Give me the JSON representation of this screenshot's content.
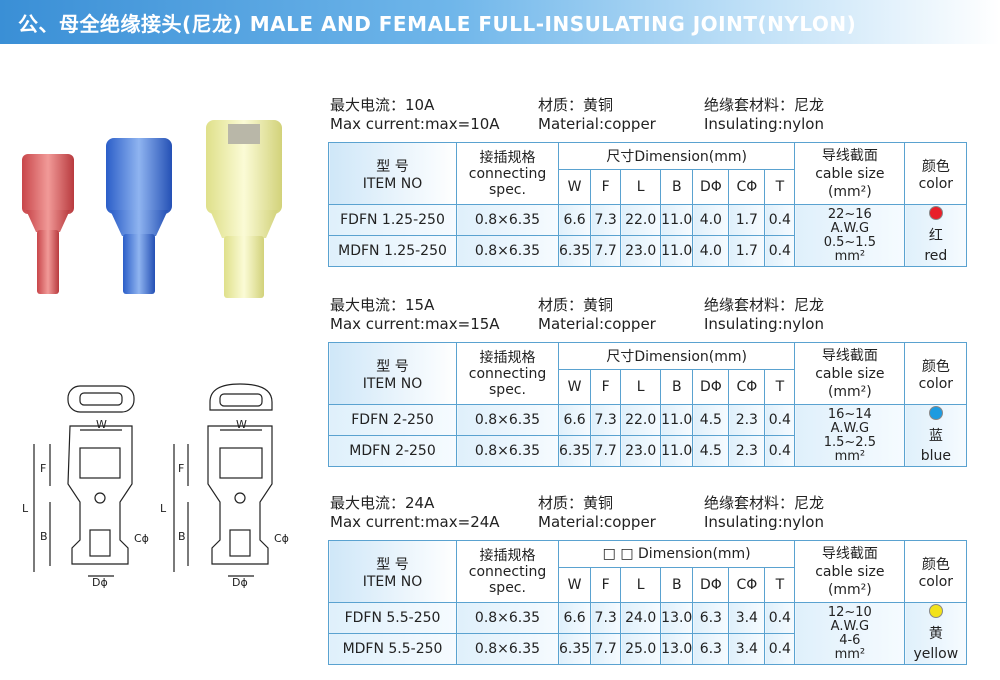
{
  "banner": {
    "title": "公、母全绝缘接头(尼龙) MALE AND FEMALE FULL-INSULATING JOINT(NYLON)"
  },
  "headers": {
    "item_cn": "型 号",
    "item_en": "ITEM NO",
    "conn_cn": "接插规格",
    "conn_en1": "connecting",
    "conn_en2": "spec.",
    "dim": "尺寸Dimension(mm)",
    "dim3": "□ □ Dimension(mm)",
    "cols": [
      "W",
      "F",
      "L",
      "B",
      "DΦ",
      "CΦ",
      "T"
    ],
    "cable_cn": "导线截面",
    "cable_en": "cable size",
    "cable_unit": "(mm²)",
    "color_cn": "颜色",
    "color_en": "color"
  },
  "diagram_labels": {
    "w": "W",
    "f": "F",
    "l": "L",
    "b": "B",
    "c": "Cϕ",
    "d": "Dϕ"
  },
  "sections": [
    {
      "current_cn": "最大电流：10A",
      "current_en": "Max current:max=10A",
      "material_cn": "材质：黄铜",
      "material_en": "Material:copper",
      "insul_cn": "绝缘套材料：尼龙",
      "insul_en": "Insulating:nylon",
      "rows": [
        {
          "item": "FDFN  1.25-250",
          "conn": "0.8×6.35",
          "vals": [
            "6.6",
            "7.3",
            "22.0",
            "11.0",
            "4.0",
            "1.7",
            "0.4"
          ]
        },
        {
          "item": "MDFN  1.25-250",
          "conn": "0.8×6.35",
          "vals": [
            "6.35",
            "7.7",
            "23.0",
            "11.0",
            "4.0",
            "1.7",
            "0.4"
          ]
        }
      ],
      "awg": "22~16",
      "awg_unit": "A.W.G",
      "mm": "0.5~1.5",
      "mm_unit": "mm²",
      "color_hex": "#e8202a",
      "color_cn": "红",
      "color_en": "red"
    },
    {
      "current_cn": "最大电流：15A",
      "current_en": "Max current:max=15A",
      "material_cn": "材质：黄铜",
      "material_en": "Material:copper",
      "insul_cn": "绝缘套材料：尼龙",
      "insul_en": "Insulating:nylon",
      "rows": [
        {
          "item": "FDFN  2-250",
          "conn": "0.8×6.35",
          "vals": [
            "6.6",
            "7.3",
            "22.0",
            "11.0",
            "4.5",
            "2.3",
            "0.4"
          ]
        },
        {
          "item": "MDFN  2-250",
          "conn": "0.8×6.35",
          "vals": [
            "6.35",
            "7.7",
            "23.0",
            "11.0",
            "4.5",
            "2.3",
            "0.4"
          ]
        }
      ],
      "awg": "16~14",
      "awg_unit": "A.W.G",
      "mm": "1.5~2.5",
      "mm_unit": "mm²",
      "color_hex": "#1e9be0",
      "color_cn": "蓝",
      "color_en": "blue"
    },
    {
      "current_cn": "最大电流：24A",
      "current_en": "Max current:max=24A",
      "material_cn": "材质：黄铜",
      "material_en": "Material:copper",
      "insul_cn": "绝缘套材料：尼龙",
      "insul_en": "Insulating:nylon",
      "rows": [
        {
          "item": "FDFN  5.5-250",
          "conn": "0.8×6.35",
          "vals": [
            "6.6",
            "7.3",
            "24.0",
            "13.0",
            "6.3",
            "3.4",
            "0.4"
          ]
        },
        {
          "item": "MDFN  5.5-250",
          "conn": "0.8×6.35",
          "vals": [
            "6.35",
            "7.7",
            "25.0",
            "13.0",
            "6.3",
            "3.4",
            "0.4"
          ]
        }
      ],
      "awg": "12~10",
      "awg_unit": "A.W.G",
      "mm": "4-6",
      "mm_unit": "mm²",
      "color_hex": "#f2e21a",
      "color_cn": "黄",
      "color_en": "yellow"
    }
  ]
}
